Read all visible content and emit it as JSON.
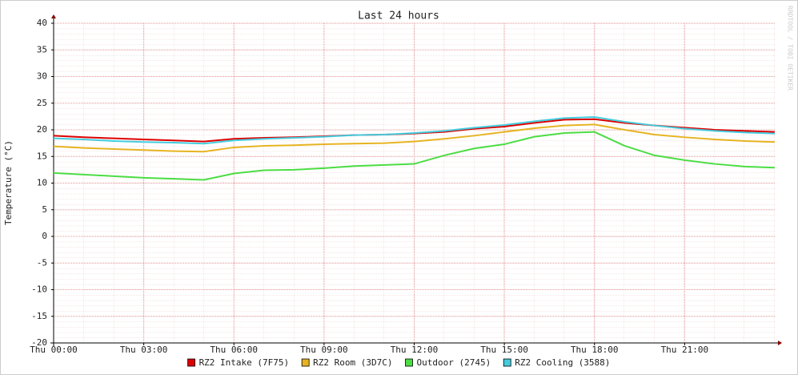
{
  "chart_data": {
    "type": "line",
    "title": "Last 24 hours",
    "y_label": "Temperature (°C)",
    "watermark": "RRDTOOL / TOBI OETIKER",
    "x": [
      0,
      1,
      2,
      3,
      4,
      5,
      6,
      7,
      8,
      9,
      10,
      11,
      12,
      13,
      14,
      15,
      16,
      17,
      18,
      19,
      20,
      21,
      22,
      23,
      24
    ],
    "xlim": [
      0,
      24
    ],
    "xticks": [
      {
        "value": 0,
        "label": "Thu 00:00"
      },
      {
        "value": 3,
        "label": "Thu 03:00"
      },
      {
        "value": 6,
        "label": "Thu 06:00"
      },
      {
        "value": 9,
        "label": "Thu 09:00"
      },
      {
        "value": 12,
        "label": "Thu 12:00"
      },
      {
        "value": 15,
        "label": "Thu 15:00"
      },
      {
        "value": 18,
        "label": "Thu 18:00"
      },
      {
        "value": 21,
        "label": "Thu 21:00"
      }
    ],
    "ylim": [
      -20,
      40
    ],
    "yticks": [
      -20,
      -15,
      -10,
      -5,
      0,
      5,
      10,
      15,
      20,
      25,
      30,
      35,
      40
    ],
    "grid": true,
    "series": [
      {
        "name": "RZ2 Intake (7F75)",
        "color": "#dd0000",
        "values": [
          18.9,
          18.6,
          18.4,
          18.2,
          18.0,
          17.8,
          18.3,
          18.5,
          18.6,
          18.8,
          19.0,
          19.1,
          19.3,
          19.6,
          20.2,
          20.6,
          21.3,
          21.9,
          22.0,
          21.3,
          20.8,
          20.4,
          20.0,
          19.8,
          19.6
        ]
      },
      {
        "name": "RZ2 Room (3D7C)",
        "color": "#e6b422",
        "values": [
          16.9,
          16.6,
          16.4,
          16.2,
          16.0,
          15.9,
          16.7,
          17.0,
          17.1,
          17.3,
          17.4,
          17.5,
          17.8,
          18.3,
          18.9,
          19.6,
          20.3,
          20.8,
          21.0,
          20.0,
          19.1,
          18.6,
          18.2,
          17.9,
          17.7
        ]
      },
      {
        "name": "Outdoor (2745)",
        "color": "#4cdd44",
        "values": [
          11.9,
          11.6,
          11.3,
          11.0,
          10.8,
          10.6,
          11.8,
          12.4,
          12.5,
          12.8,
          13.2,
          13.4,
          13.6,
          15.2,
          16.5,
          17.3,
          18.7,
          19.4,
          19.6,
          17.0,
          15.2,
          14.3,
          13.6,
          13.1,
          12.9
        ]
      },
      {
        "name": "RZ2 Cooling (3588)",
        "color": "#44ccdd",
        "values": [
          18.4,
          18.2,
          17.9,
          17.7,
          17.6,
          17.4,
          18.0,
          18.3,
          18.5,
          18.7,
          19.0,
          19.1,
          19.4,
          19.8,
          20.4,
          20.9,
          21.6,
          22.2,
          22.4,
          21.5,
          20.8,
          20.2,
          19.8,
          19.5,
          19.3
        ]
      }
    ]
  }
}
